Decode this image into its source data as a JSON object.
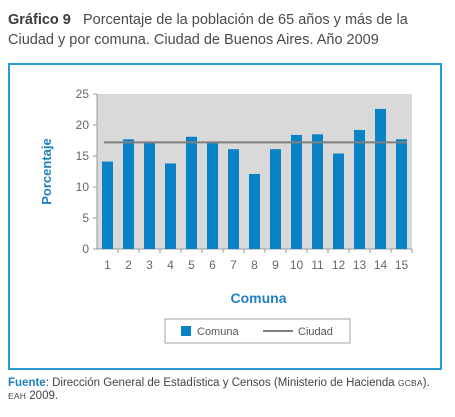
{
  "figure": {
    "number_label": "Gráfico 9",
    "title": "Porcentaje de la población de 65 años y más de la Ciudad y por comuna. Ciudad de Buenos Aires. Año 2009"
  },
  "chart_data": {
    "type": "bar",
    "xlabel": "Comuna",
    "ylabel": "Porcentaje",
    "ylim": [
      0,
      25
    ],
    "yticks": [
      0,
      5,
      10,
      15,
      20,
      25
    ],
    "categories": [
      "1",
      "2",
      "3",
      "4",
      "5",
      "6",
      "7",
      "8",
      "9",
      "10",
      "11",
      "12",
      "13",
      "14",
      "15"
    ],
    "series": [
      {
        "name": "Comuna",
        "type": "bar",
        "color": "#0a82c8",
        "values": [
          14.1,
          17.7,
          17.1,
          13.8,
          18.1,
          17.1,
          16.1,
          12.1,
          16.1,
          18.4,
          18.5,
          15.4,
          19.2,
          22.6,
          17.7
        ]
      },
      {
        "name": "Ciudad",
        "type": "line",
        "color": "#7f7f7f",
        "value": 17.2
      }
    ],
    "grid": false,
    "legend_position": "bottom",
    "plot_background": "#d9d9d9"
  },
  "source": {
    "label": "Fuente",
    "text_1": ": Dirección General de Estadística y Censos (Ministerio de Hacienda ",
    "org_1": "GCBA",
    "text_2": "). ",
    "org_2": "EAH",
    "text_3": " 2009."
  }
}
